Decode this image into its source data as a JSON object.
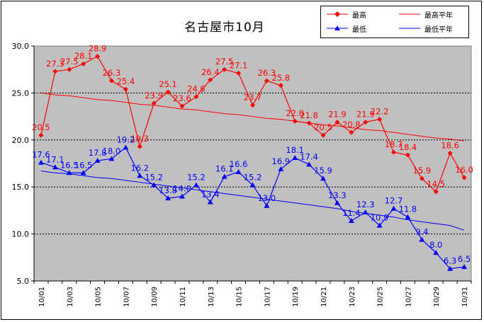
{
  "chart_data": {
    "type": "line",
    "title": "名古屋市10月",
    "categories": [
      "10/01",
      "10/02",
      "10/03",
      "10/04",
      "10/05",
      "10/06",
      "10/07",
      "10/08",
      "10/09",
      "10/10",
      "10/11",
      "10/12",
      "10/13",
      "10/14",
      "10/15",
      "10/16",
      "10/17",
      "10/18",
      "10/19",
      "10/20",
      "10/21",
      "10/22",
      "10/23",
      "10/24",
      "10/25",
      "10/26",
      "10/27",
      "10/28",
      "10/29",
      "10/30",
      "10/31"
    ],
    "x_tick_labels": [
      "10/01",
      "10/03",
      "10/05",
      "10/07",
      "10/09",
      "10/11",
      "10/13",
      "10/15",
      "10/17",
      "10/19",
      "10/21",
      "10/23",
      "10/25",
      "10/27",
      "10/29",
      "10/31"
    ],
    "y_tick_labels": [
      "5.0",
      "10.0",
      "15.0",
      "20.0",
      "25.0",
      "30.0"
    ],
    "ylim": [
      5,
      30
    ],
    "grid": true,
    "legend_position": "top-right",
    "series": [
      {
        "name": "最高",
        "color": "#ff0000",
        "marker": "diamond",
        "values": [
          20.5,
          27.3,
          27.5,
          28.1,
          28.9,
          26.3,
          25.4,
          19.3,
          23.9,
          25.1,
          23.6,
          24.6,
          26.4,
          27.5,
          27.1,
          23.7,
          26.3,
          25.8,
          22.0,
          21.8,
          20.5,
          21.9,
          20.8,
          21.9,
          22.2,
          18.7,
          18.4,
          15.9,
          14.5,
          18.6,
          16.0
        ],
        "labels": [
          "20.5",
          "27.3",
          "27.5",
          "28.1",
          "28.9",
          "26.3",
          "25.4",
          "19.3",
          "23.9",
          "25.1",
          "23.6",
          "24.6",
          "26.4",
          "27.5",
          "27.1",
          "23.7",
          "26.3",
          "25.8",
          "22.0",
          "21.8",
          "20.5",
          "21.9",
          "20.8",
          "21.9",
          "22.2",
          "18.7",
          "18.4",
          "15.9",
          "14.5",
          "18.6",
          "16.0"
        ]
      },
      {
        "name": "最高平年",
        "color": "#ff0000",
        "marker": "none",
        "values": [
          25.0,
          24.8,
          24.7,
          24.5,
          24.3,
          24.2,
          24.0,
          23.8,
          23.7,
          23.5,
          23.3,
          23.2,
          23.0,
          22.8,
          22.7,
          22.5,
          22.3,
          22.2,
          22.0,
          21.8,
          21.6,
          21.5,
          21.3,
          21.1,
          21.0,
          20.8,
          20.6,
          20.4,
          20.2,
          20.1,
          19.9
        ]
      },
      {
        "name": "最低",
        "color": "#0000ff",
        "marker": "triangle",
        "values": [
          17.6,
          17.1,
          16.5,
          16.5,
          17.8,
          18.0,
          19.2,
          16.2,
          15.2,
          13.8,
          14.0,
          15.2,
          13.4,
          16.1,
          16.6,
          15.2,
          13.0,
          16.9,
          18.1,
          17.4,
          15.9,
          13.3,
          11.4,
          12.3,
          10.9,
          12.7,
          11.8,
          9.4,
          8.0,
          6.3,
          6.5
        ],
        "labels": [
          "17.6",
          "17.1",
          "16.5",
          "16.5",
          "17.8",
          "18.0",
          "19.2",
          "16.2",
          "15.2",
          "13.8",
          "14.0",
          "15.2",
          "13.4",
          "16.1",
          "16.6",
          "15.2",
          "13.0",
          "16.9",
          "18.1",
          "17.4",
          "15.9",
          "13.3",
          "11.4",
          "12.3",
          "10.9",
          "12.7",
          "11.8",
          "9.4",
          "8.0",
          "6.3",
          "6.5"
        ]
      },
      {
        "name": "最低平年",
        "color": "#0000ff",
        "marker": "none",
        "values": [
          16.7,
          16.5,
          16.4,
          16.2,
          16.0,
          15.9,
          15.7,
          15.5,
          15.3,
          15.1,
          14.9,
          14.7,
          14.5,
          14.3,
          14.1,
          13.9,
          13.7,
          13.5,
          13.3,
          13.1,
          12.9,
          12.7,
          12.4,
          12.2,
          12.0,
          11.8,
          11.5,
          11.3,
          11.1,
          10.9,
          10.4
        ]
      }
    ]
  }
}
